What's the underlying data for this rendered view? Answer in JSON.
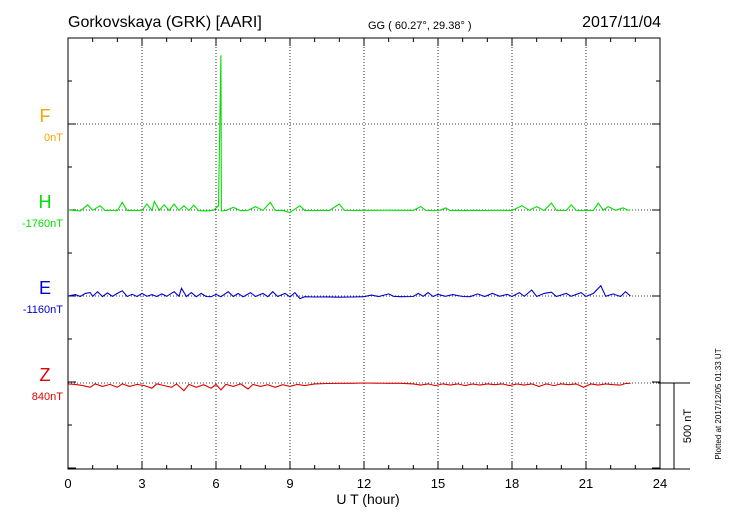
{
  "header": {
    "station": "Gorkovskaya (GRK)  [AARI]",
    "coords": "GG ( 60.27°,  29.38° )",
    "date": "2017/11/04"
  },
  "footer": {
    "xlabel": "U T (hour)",
    "plotted": "Plotted at 2017/12/05 01:33 UT",
    "scale_label": "500 nT"
  },
  "chart_data": {
    "type": "line",
    "x_range": [
      0,
      24
    ],
    "x_ticks": [
      "0",
      "3",
      "6",
      "9",
      "12",
      "15",
      "18",
      "21",
      "24"
    ],
    "grid": true,
    "scale_bar_nT": 500,
    "series": [
      {
        "name": "F",
        "baseline": "0nT",
        "color": "#f5a500",
        "points": []
      },
      {
        "name": "H",
        "baseline": "-1760nT",
        "color": "#00e000",
        "points": [
          [
            0,
            0
          ],
          [
            0.5,
            -5
          ],
          [
            0.8,
            30
          ],
          [
            1.0,
            -2
          ],
          [
            1.3,
            25
          ],
          [
            1.5,
            -3
          ],
          [
            1.7,
            -2
          ],
          [
            2.0,
            -4
          ],
          [
            2.2,
            45
          ],
          [
            2.4,
            -3
          ],
          [
            2.6,
            -2
          ],
          [
            2.8,
            -3
          ],
          [
            3.0,
            -2
          ],
          [
            3.2,
            35
          ],
          [
            3.4,
            -3
          ],
          [
            3.5,
            50
          ],
          [
            3.7,
            -2
          ],
          [
            3.9,
            30
          ],
          [
            4.1,
            -3
          ],
          [
            4.3,
            35
          ],
          [
            4.5,
            -2
          ],
          [
            4.7,
            25
          ],
          [
            4.9,
            -3
          ],
          [
            5.1,
            28
          ],
          [
            5.3,
            -4
          ],
          [
            5.6,
            -5
          ],
          [
            5.9,
            -2
          ],
          [
            6.1,
            25
          ],
          [
            6.2,
            900
          ],
          [
            6.22,
            -6
          ],
          [
            6.4,
            -3
          ],
          [
            6.7,
            15
          ],
          [
            7.0,
            -4
          ],
          [
            7.3,
            -2
          ],
          [
            7.6,
            20
          ],
          [
            7.9,
            -3
          ],
          [
            8.2,
            45
          ],
          [
            8.4,
            -3
          ],
          [
            8.7,
            -2
          ],
          [
            9.0,
            -15
          ],
          [
            9.1,
            -4
          ],
          [
            9.4,
            25
          ],
          [
            9.6,
            -3
          ],
          [
            9.9,
            -3
          ],
          [
            10.3,
            -2
          ],
          [
            10.6,
            -3
          ],
          [
            11.0,
            35
          ],
          [
            11.2,
            -2
          ],
          [
            11.6,
            -3
          ],
          [
            12.0,
            -2
          ],
          [
            12.5,
            -2
          ],
          [
            13.0,
            -1
          ],
          [
            13.5,
            -2
          ],
          [
            14.0,
            -2
          ],
          [
            14.3,
            20
          ],
          [
            14.5,
            -2
          ],
          [
            14.8,
            -3
          ],
          [
            15.1,
            -2
          ],
          [
            15.3,
            12
          ],
          [
            15.5,
            -3
          ],
          [
            15.8,
            -2
          ],
          [
            16.1,
            -4
          ],
          [
            16.4,
            -2
          ],
          [
            16.8,
            -3
          ],
          [
            17.2,
            -2
          ],
          [
            17.6,
            -2
          ],
          [
            18.0,
            -3
          ],
          [
            18.4,
            25
          ],
          [
            18.7,
            -2
          ],
          [
            19.0,
            20
          ],
          [
            19.3,
            -3
          ],
          [
            19.6,
            40
          ],
          [
            19.8,
            -2
          ],
          [
            20.2,
            -3
          ],
          [
            20.4,
            30
          ],
          [
            20.6,
            -2
          ],
          [
            21.0,
            -3
          ],
          [
            21.3,
            -2
          ],
          [
            21.5,
            40
          ],
          [
            21.7,
            -1
          ],
          [
            21.9,
            20
          ],
          [
            22.2,
            -2
          ],
          [
            22.5,
            12
          ],
          [
            22.7,
            -1
          ],
          [
            22.8,
            0
          ]
        ]
      },
      {
        "name": "E",
        "baseline": "-1160nT",
        "color": "#0000d0",
        "points": [
          [
            0,
            0
          ],
          [
            0.3,
            8
          ],
          [
            0.5,
            -3
          ],
          [
            0.7,
            15
          ],
          [
            0.9,
            20
          ],
          [
            1.0,
            -2
          ],
          [
            1.2,
            25
          ],
          [
            1.4,
            -3
          ],
          [
            1.6,
            18
          ],
          [
            1.8,
            -2
          ],
          [
            2.0,
            15
          ],
          [
            2.2,
            30
          ],
          [
            2.4,
            -3
          ],
          [
            2.6,
            10
          ],
          [
            2.8,
            -3
          ],
          [
            3.0,
            15
          ],
          [
            3.2,
            -2
          ],
          [
            3.4,
            8
          ],
          [
            3.6,
            -3
          ],
          [
            3.8,
            12
          ],
          [
            4.0,
            -2
          ],
          [
            4.3,
            25
          ],
          [
            4.5,
            -2
          ],
          [
            4.6,
            45
          ],
          [
            4.8,
            -3
          ],
          [
            5.0,
            20
          ],
          [
            5.2,
            -4
          ],
          [
            5.4,
            15
          ],
          [
            5.6,
            -3
          ],
          [
            5.8,
            -4
          ],
          [
            6.0,
            10
          ],
          [
            6.2,
            -4
          ],
          [
            6.5,
            25
          ],
          [
            6.7,
            -3
          ],
          [
            6.9,
            15
          ],
          [
            7.1,
            -5
          ],
          [
            7.4,
            20
          ],
          [
            7.6,
            -3
          ],
          [
            7.9,
            15
          ],
          [
            8.1,
            -4
          ],
          [
            8.3,
            25
          ],
          [
            8.5,
            -3
          ],
          [
            8.8,
            15
          ],
          [
            9.0,
            -5
          ],
          [
            9.2,
            20
          ],
          [
            9.4,
            -15
          ],
          [
            9.6,
            -4
          ],
          [
            10.0,
            -6
          ],
          [
            10.5,
            -5
          ],
          [
            11.0,
            -7
          ],
          [
            11.5,
            -6
          ],
          [
            12.0,
            -4
          ],
          [
            12.3,
            5
          ],
          [
            12.6,
            -3
          ],
          [
            13.0,
            12
          ],
          [
            13.2,
            -2
          ],
          [
            13.5,
            -4
          ],
          [
            14.0,
            -3
          ],
          [
            14.2,
            15
          ],
          [
            14.4,
            -2
          ],
          [
            14.6,
            20
          ],
          [
            14.8,
            -3
          ],
          [
            15.0,
            10
          ],
          [
            15.3,
            -2
          ],
          [
            15.6,
            8
          ],
          [
            16.0,
            -3
          ],
          [
            16.3,
            -4
          ],
          [
            16.6,
            12
          ],
          [
            16.9,
            -3
          ],
          [
            17.2,
            15
          ],
          [
            17.5,
            -2
          ],
          [
            17.8,
            10
          ],
          [
            18.0,
            -3
          ],
          [
            18.3,
            20
          ],
          [
            18.5,
            -2
          ],
          [
            18.8,
            35
          ],
          [
            19.0,
            -3
          ],
          [
            19.3,
            15
          ],
          [
            19.6,
            22
          ],
          [
            19.8,
            -3
          ],
          [
            20.2,
            15
          ],
          [
            20.4,
            -2
          ],
          [
            20.8,
            20
          ],
          [
            21.0,
            -3
          ],
          [
            21.3,
            15
          ],
          [
            21.6,
            60
          ],
          [
            21.8,
            -2
          ],
          [
            22.1,
            12
          ],
          [
            22.4,
            -3
          ],
          [
            22.6,
            25
          ],
          [
            22.8,
            0
          ]
        ]
      },
      {
        "name": "Z",
        "baseline": "840nT",
        "color": "#e00000",
        "points": [
          [
            0,
            -5
          ],
          [
            0.3,
            -8
          ],
          [
            0.6,
            -15
          ],
          [
            0.9,
            -25
          ],
          [
            1.1,
            -5
          ],
          [
            1.4,
            -20
          ],
          [
            1.7,
            -8
          ],
          [
            2.0,
            -25
          ],
          [
            2.2,
            -5
          ],
          [
            2.5,
            -20
          ],
          [
            2.8,
            -8
          ],
          [
            3.1,
            -15
          ],
          [
            3.4,
            -30
          ],
          [
            3.6,
            -5
          ],
          [
            3.9,
            -15
          ],
          [
            4.2,
            -25
          ],
          [
            4.4,
            -5
          ],
          [
            4.7,
            -45
          ],
          [
            4.9,
            -8
          ],
          [
            5.2,
            -25
          ],
          [
            5.5,
            -10
          ],
          [
            5.8,
            -30
          ],
          [
            6.0,
            -8
          ],
          [
            6.2,
            -40
          ],
          [
            6.4,
            -8
          ],
          [
            6.7,
            -20
          ],
          [
            7.0,
            -5
          ],
          [
            7.3,
            -35
          ],
          [
            7.5,
            -8
          ],
          [
            7.8,
            -20
          ],
          [
            8.1,
            -10
          ],
          [
            8.4,
            -25
          ],
          [
            8.7,
            -10
          ],
          [
            9.0,
            -20
          ],
          [
            9.3,
            -8
          ],
          [
            9.6,
            -15
          ],
          [
            10.0,
            -5
          ],
          [
            10.5,
            -3
          ],
          [
            11.0,
            -2
          ],
          [
            11.5,
            -2
          ],
          [
            12.0,
            0
          ],
          [
            12.5,
            -1
          ],
          [
            13.0,
            -2
          ],
          [
            13.5,
            -2
          ],
          [
            14.0,
            -5
          ],
          [
            14.3,
            -12
          ],
          [
            14.6,
            -5
          ],
          [
            14.9,
            -15
          ],
          [
            15.2,
            -5
          ],
          [
            15.5,
            -12
          ],
          [
            15.8,
            -5
          ],
          [
            16.1,
            -15
          ],
          [
            16.4,
            -6
          ],
          [
            16.7,
            -12
          ],
          [
            17.0,
            -5
          ],
          [
            17.3,
            -10
          ],
          [
            17.6,
            -5
          ],
          [
            17.9,
            -15
          ],
          [
            18.2,
            -6
          ],
          [
            18.5,
            -12
          ],
          [
            18.8,
            -5
          ],
          [
            19.1,
            -20
          ],
          [
            19.4,
            -5
          ],
          [
            19.7,
            -15
          ],
          [
            20.0,
            -5
          ],
          [
            20.3,
            -10
          ],
          [
            20.6,
            -5
          ],
          [
            20.9,
            -25
          ],
          [
            21.2,
            -6
          ],
          [
            21.5,
            -12
          ],
          [
            21.8,
            -5
          ],
          [
            22.1,
            -10
          ],
          [
            22.4,
            -12
          ],
          [
            22.6,
            -3
          ],
          [
            22.8,
            -2
          ]
        ]
      }
    ]
  }
}
